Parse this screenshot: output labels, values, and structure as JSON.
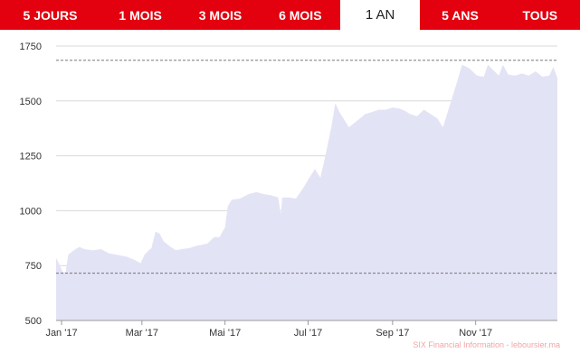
{
  "tabs": [
    {
      "label": "5 JOURS",
      "active": false
    },
    {
      "label": "1 MOIS",
      "active": false
    },
    {
      "label": "3 MOIS",
      "active": false
    },
    {
      "label": "6 MOIS",
      "active": false
    },
    {
      "label": "1 AN",
      "active": true
    },
    {
      "label": "5 ANS",
      "active": false
    },
    {
      "label": "TOUS",
      "active": false
    }
  ],
  "credit": "SIX Financial Information - leboursier.ma",
  "colors": {
    "accent": "#e3000f",
    "area_fill": "#e3e3f6",
    "grid": "#d8d8d8",
    "ref_line": "#666666"
  },
  "chart_data": {
    "type": "area",
    "title": "",
    "xlabel": "",
    "ylabel": "",
    "ylim": [
      500,
      1750
    ],
    "yticks": [
      500,
      750,
      1000,
      1250,
      1500,
      1750
    ],
    "xticks": [
      {
        "label": "Jan '17",
        "x": "2017-01-01"
      },
      {
        "label": "Mar '17",
        "x": "2017-03-01"
      },
      {
        "label": "Mai '17",
        "x": "2017-05-01"
      },
      {
        "label": "Jul '17",
        "x": "2017-07-01"
      },
      {
        "label": "Sep '17",
        "x": "2017-09-01"
      },
      {
        "label": "Nov '17",
        "x": "2017-11-01"
      }
    ],
    "xrange": [
      "2016-12-28",
      "2017-12-31"
    ],
    "reference_lines": [
      {
        "value": 1685,
        "style": "dashed"
      },
      {
        "value": 715,
        "style": "dashed"
      }
    ],
    "grid": true,
    "legend": "none",
    "series": [
      {
        "values": [
          [
            "2016-12-28",
            785
          ],
          [
            "2016-12-30",
            760
          ],
          [
            "2017-01-02",
            720
          ],
          [
            "2017-01-04",
            720
          ],
          [
            "2017-01-06",
            800
          ],
          [
            "2017-01-10",
            820
          ],
          [
            "2017-01-14",
            835
          ],
          [
            "2017-01-18",
            825
          ],
          [
            "2017-01-24",
            820
          ],
          [
            "2017-01-30",
            825
          ],
          [
            "2017-02-05",
            805
          ],
          [
            "2017-02-10",
            800
          ],
          [
            "2017-02-14",
            795
          ],
          [
            "2017-02-18",
            790
          ],
          [
            "2017-02-24",
            775
          ],
          [
            "2017-02-28",
            760
          ],
          [
            "2017-03-03",
            800
          ],
          [
            "2017-03-06",
            820
          ],
          [
            "2017-03-08",
            830
          ],
          [
            "2017-03-11",
            905
          ],
          [
            "2017-03-14",
            895
          ],
          [
            "2017-03-17",
            860
          ],
          [
            "2017-03-22",
            835
          ],
          [
            "2017-03-26",
            820
          ],
          [
            "2017-03-30",
            825
          ],
          [
            "2017-04-05",
            830
          ],
          [
            "2017-04-10",
            840
          ],
          [
            "2017-04-14",
            845
          ],
          [
            "2017-04-18",
            850
          ],
          [
            "2017-04-23",
            880
          ],
          [
            "2017-04-27",
            880
          ],
          [
            "2017-05-01",
            925
          ],
          [
            "2017-05-03",
            1020
          ],
          [
            "2017-05-06",
            1050
          ],
          [
            "2017-05-12",
            1055
          ],
          [
            "2017-05-18",
            1075
          ],
          [
            "2017-05-24",
            1085
          ],
          [
            "2017-05-30",
            1075
          ],
          [
            "2017-06-04",
            1070
          ],
          [
            "2017-06-09",
            1060
          ],
          [
            "2017-06-11",
            985
          ],
          [
            "2017-06-12",
            1060
          ],
          [
            "2017-06-17",
            1060
          ],
          [
            "2017-06-22",
            1055
          ],
          [
            "2017-06-27",
            1100
          ],
          [
            "2017-07-02",
            1150
          ],
          [
            "2017-07-06",
            1190
          ],
          [
            "2017-07-10",
            1150
          ],
          [
            "2017-07-14",
            1260
          ],
          [
            "2017-07-18",
            1380
          ],
          [
            "2017-07-21",
            1490
          ],
          [
            "2017-07-24",
            1450
          ],
          [
            "2017-07-27",
            1420
          ],
          [
            "2017-07-31",
            1380
          ],
          [
            "2017-08-04",
            1400
          ],
          [
            "2017-08-08",
            1420
          ],
          [
            "2017-08-12",
            1440
          ],
          [
            "2017-08-17",
            1450
          ],
          [
            "2017-08-22",
            1460
          ],
          [
            "2017-08-27",
            1460
          ],
          [
            "2017-09-01",
            1470
          ],
          [
            "2017-09-06",
            1465
          ],
          [
            "2017-09-10",
            1455
          ],
          [
            "2017-09-14",
            1440
          ],
          [
            "2017-09-19",
            1430
          ],
          [
            "2017-09-24",
            1460
          ],
          [
            "2017-09-29",
            1440
          ],
          [
            "2017-10-04",
            1420
          ],
          [
            "2017-10-08",
            1380
          ],
          [
            "2017-10-12",
            1460
          ],
          [
            "2017-10-16",
            1540
          ],
          [
            "2017-10-19",
            1600
          ],
          [
            "2017-10-22",
            1665
          ],
          [
            "2017-10-27",
            1650
          ],
          [
            "2017-11-02",
            1615
          ],
          [
            "2017-11-07",
            1610
          ],
          [
            "2017-11-10",
            1665
          ],
          [
            "2017-11-14",
            1640
          ],
          [
            "2017-11-18",
            1615
          ],
          [
            "2017-11-21",
            1665
          ],
          [
            "2017-11-25",
            1620
          ],
          [
            "2017-11-30",
            1615
          ],
          [
            "2017-12-05",
            1625
          ],
          [
            "2017-12-10",
            1615
          ],
          [
            "2017-12-15",
            1635
          ],
          [
            "2017-12-20",
            1610
          ],
          [
            "2017-12-25",
            1615
          ],
          [
            "2017-12-28",
            1655
          ],
          [
            "2017-12-31",
            1605
          ]
        ]
      }
    ]
  }
}
